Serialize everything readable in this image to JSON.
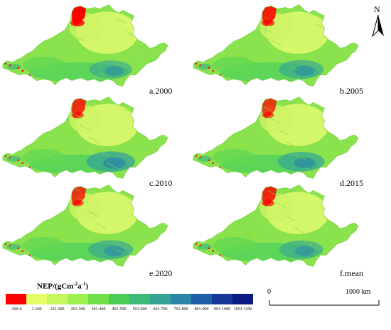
{
  "panels": [
    {
      "label": "a.2000",
      "red": 1.0,
      "blue": 0.45
    },
    {
      "label": "b.2005",
      "red": 0.8,
      "blue": 0.55
    },
    {
      "label": "c.2010",
      "red": 0.7,
      "blue": 0.75
    },
    {
      "label": "d.2015",
      "red": 0.6,
      "blue": 0.65
    },
    {
      "label": "e.2020",
      "red": 0.65,
      "blue": 0.55
    },
    {
      "label": "f.mean",
      "red": 0.75,
      "blue": 0.5
    }
  ],
  "north": {
    "letter": "N",
    "icon": "north-arrow-icon"
  },
  "legend": {
    "title_prefix": "NEP/(gCm",
    "title_exp1": "-2",
    "title_mid": "a",
    "title_exp2": "-1",
    "title_suffix": ")",
    "classes": [
      {
        "label": "-100-0",
        "color": "#ff0000"
      },
      {
        "label": "1-100",
        "color": "#e6ff66"
      },
      {
        "label": "101-200",
        "color": "#c6f75c"
      },
      {
        "label": "201-300",
        "color": "#9ef04e"
      },
      {
        "label": "301-400",
        "color": "#6fe04a"
      },
      {
        "label": "401-500",
        "color": "#4ccc57"
      },
      {
        "label": "501-600",
        "color": "#3db97a"
      },
      {
        "label": "601-700",
        "color": "#35a497"
      },
      {
        "label": "701-800",
        "color": "#2b86a8"
      },
      {
        "label": "801-900",
        "color": "#1f5fa8"
      },
      {
        "label": "901-1000",
        "color": "#17379a"
      },
      {
        "label": "1001-1100",
        "color": "#0c1a84"
      }
    ]
  },
  "scale_bar": {
    "start_label": "0",
    "end_label": "1000 km"
  }
}
